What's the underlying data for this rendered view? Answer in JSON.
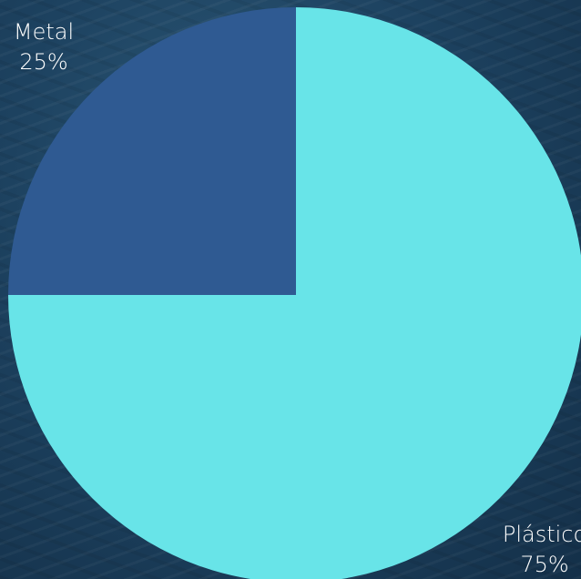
{
  "chart_data": {
    "type": "pie",
    "title": "",
    "slices": [
      {
        "label": "Metal",
        "value": 25,
        "value_label": "25%",
        "color": "#2f5a92"
      },
      {
        "label": "Plástico",
        "value": 75,
        "value_label": "75%",
        "color": "#68e4e8"
      }
    ],
    "start": "top",
    "direction": "counterclockwise"
  }
}
